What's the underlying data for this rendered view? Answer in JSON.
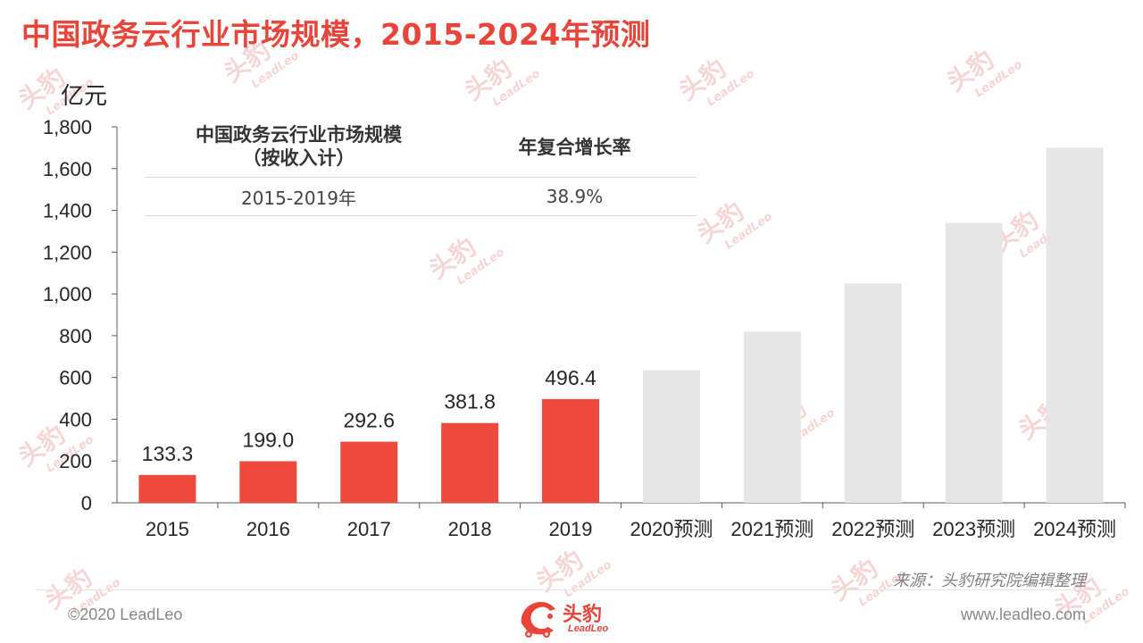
{
  "title": "中国政务云行业市场规模，2015-2024年预测",
  "watermark": {
    "cn": "头豹",
    "en": "LeadLeo"
  },
  "table": {
    "header_metric": "中国政务云行业市场规模",
    "header_metric_sub": "（按收入计）",
    "header_rate": "年复合增长率",
    "period": "2015-2019年",
    "cagr": "38.9%"
  },
  "source": "来源：头豹研究院编辑整理",
  "footer": {
    "copyright": "©2020 LeadLeo",
    "website": "www.leadleo.com",
    "logo_cn": "头豹",
    "logo_en": "LeadLeo"
  },
  "colors": {
    "title": "#e8443a",
    "actual_bar": "#ef483c",
    "forecast_bar": "#e6e6e6",
    "axis": "#595959",
    "text": "#262626"
  },
  "chart_data": {
    "type": "bar",
    "ylabel": "亿元",
    "ylim": [
      0,
      1800
    ],
    "yticks": [
      0,
      200,
      400,
      600,
      800,
      1000,
      1200,
      1400,
      1600,
      1800
    ],
    "ytick_labels": [
      "0",
      "200",
      "400",
      "600",
      "800",
      "1,000",
      "1,200",
      "1,400",
      "1,600",
      "1,800"
    ],
    "grid": false,
    "categories": [
      "2015",
      "2016",
      "2017",
      "2018",
      "2019",
      "2020预测",
      "2021预测",
      "2022预测",
      "2023预测",
      "2024预测"
    ],
    "values": [
      133.3,
      199.0,
      292.6,
      381.8,
      496.4,
      635,
      820,
      1050,
      1340,
      1700
    ],
    "data_labels": [
      "133.3",
      "199.0",
      "292.6",
      "381.8",
      "496.4",
      "",
      "",
      "",
      "",
      ""
    ],
    "forecast": [
      false,
      false,
      false,
      false,
      false,
      true,
      true,
      true,
      true,
      true
    ]
  }
}
